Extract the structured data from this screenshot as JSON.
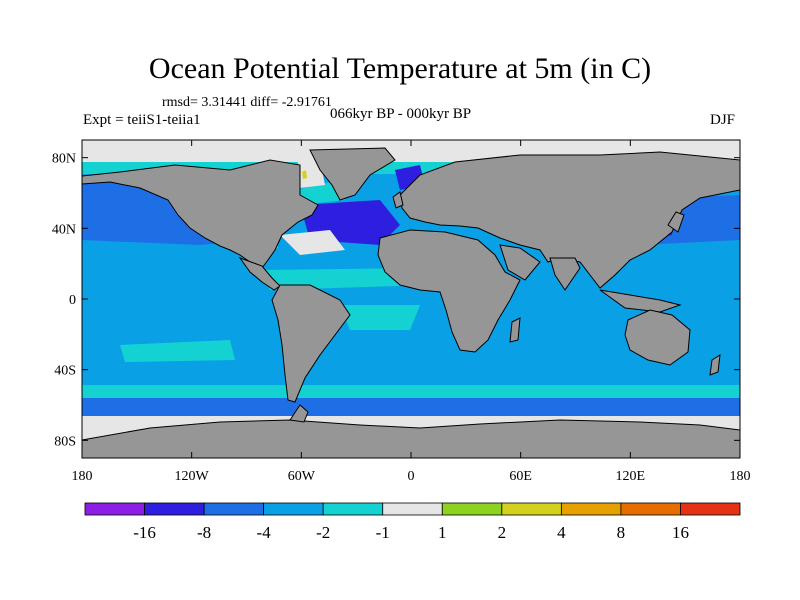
{
  "header": {
    "title": "Ocean Potential Temperature at 5m (in C)",
    "stats": "rmsd= 3.31441 diff= -2.91761",
    "experiment": "Expt = teiiS1-teiia1",
    "period": "066kyr BP - 000kyr BP",
    "season": "DJF"
  },
  "axes": {
    "x_ticks": [
      "180",
      "120W",
      "60W",
      "0",
      "60E",
      "120E",
      "180"
    ],
    "y_ticks": [
      "80N",
      "40N",
      "0",
      "40S",
      "80S"
    ]
  },
  "colorbar": {
    "labels": [
      "-16",
      "-8",
      "-4",
      "-2",
      "-1",
      "1",
      "2",
      "4",
      "8",
      "16"
    ],
    "colors": [
      "#8c1ee6",
      "#2d1ee0",
      "#1e6ee6",
      "#0aa0e6",
      "#14d2d2",
      "#e6e6e6",
      "#8cd21e",
      "#d2d21e",
      "#e6a000",
      "#e66e00",
      "#e63214"
    ]
  },
  "colors": {
    "land": "#969696",
    "ocean_base": "#0aa0e6",
    "sea_ice_zone": "#e6e6e6"
  }
}
